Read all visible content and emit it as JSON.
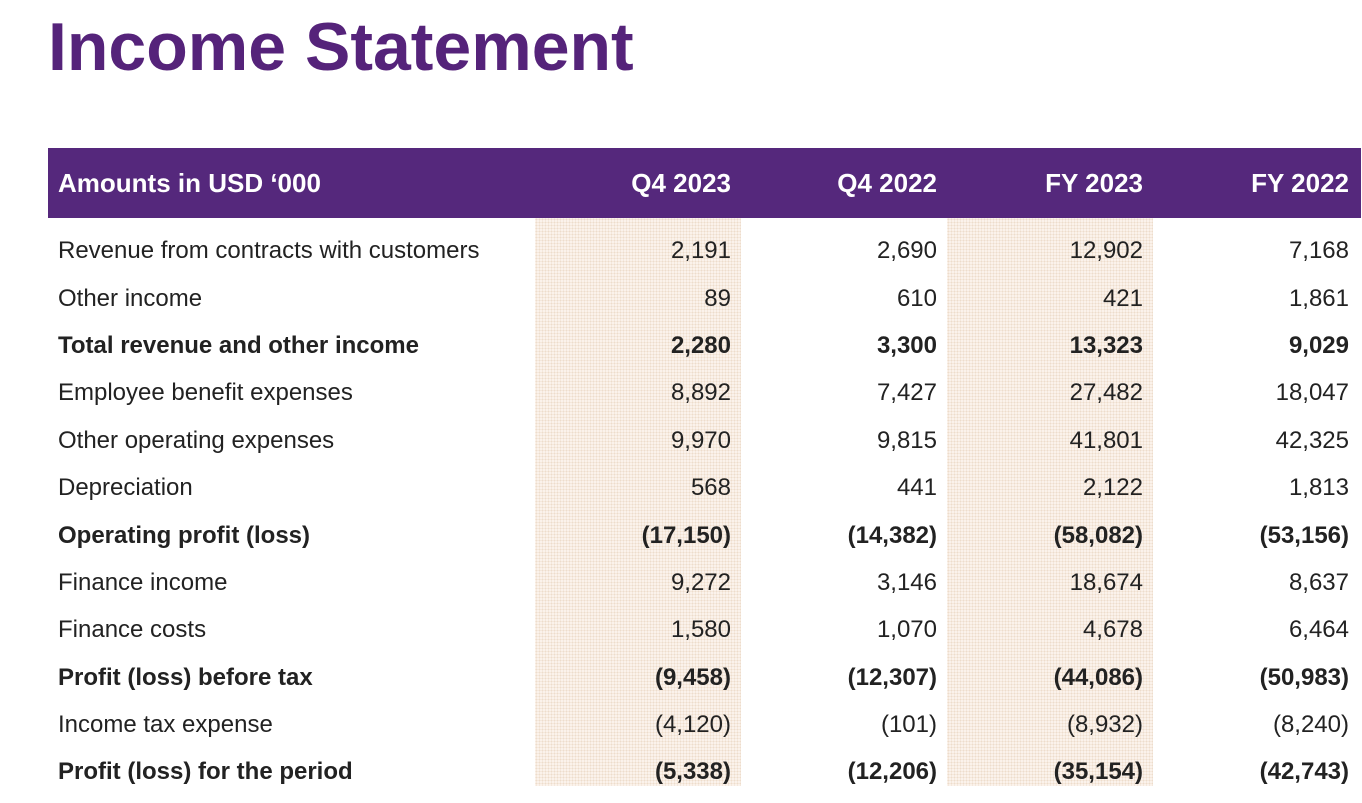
{
  "title": "Income Statement",
  "table": {
    "headers": [
      "Amounts in USD ‘000",
      "Q4 2023",
      "Q4 2022",
      "FY 2023",
      "FY 2022"
    ],
    "rows": [
      {
        "label": "Revenue from contracts with customers",
        "values": [
          "2,191",
          "2,690",
          "12,902",
          "7,168"
        ],
        "bold": false
      },
      {
        "label": "Other income",
        "values": [
          "89",
          "610",
          "421",
          "1,861"
        ],
        "bold": false
      },
      {
        "label": "Total revenue and other income",
        "values": [
          "2,280",
          "3,300",
          "13,323",
          "9,029"
        ],
        "bold": true
      },
      {
        "label": "Employee benefit expenses",
        "values": [
          "8,892",
          "7,427",
          "27,482",
          "18,047"
        ],
        "bold": false
      },
      {
        "label": "Other operating expenses",
        "values": [
          "9,970",
          "9,815",
          "41,801",
          "42,325"
        ],
        "bold": false
      },
      {
        "label": "Depreciation",
        "values": [
          "568",
          "441",
          "2,122",
          "1,813"
        ],
        "bold": false
      },
      {
        "label": "Operating profit (loss)",
        "values": [
          "(17,150)",
          "(14,382)",
          "(58,082)",
          "(53,156)"
        ],
        "bold": true
      },
      {
        "label": "Finance income",
        "values": [
          "9,272",
          "3,146",
          "18,674",
          "8,637"
        ],
        "bold": false
      },
      {
        "label": "Finance costs",
        "values": [
          "1,580",
          "1,070",
          "4,678",
          "6,464"
        ],
        "bold": false
      },
      {
        "label": "Profit (loss) before tax",
        "values": [
          "(9,458)",
          "(12,307)",
          "(44,086)",
          "(50,983)"
        ],
        "bold": true
      },
      {
        "label": "Income tax expense",
        "values": [
          "(4,120)",
          "(101)",
          "(8,932)",
          "(8,240)"
        ],
        "bold": false
      },
      {
        "label": "Profit (loss) for the period",
        "values": [
          "(5,338)",
          "(12,206)",
          "(35,154)",
          "(42,743)"
        ],
        "bold": true
      }
    ]
  },
  "colors": {
    "title": "#55237a",
    "header_bg": "#55287c",
    "header_text": "#ffffff",
    "shade": "#fbf3ec"
  }
}
